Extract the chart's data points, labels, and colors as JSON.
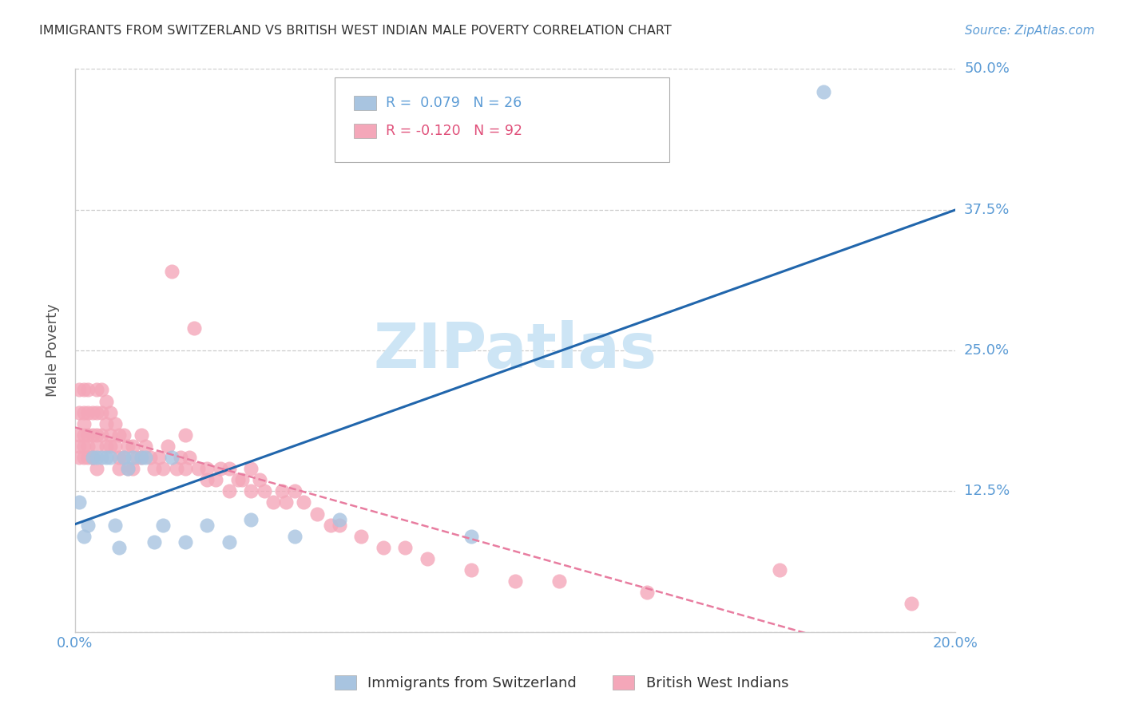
{
  "title": "IMMIGRANTS FROM SWITZERLAND VS BRITISH WEST INDIAN MALE POVERTY CORRELATION CHART",
  "source": "Source: ZipAtlas.com",
  "ylabel": "Male Poverty",
  "x_min": 0.0,
  "x_max": 0.2,
  "y_min": 0.0,
  "y_max": 0.5,
  "x_ticks": [
    0.0,
    0.05,
    0.1,
    0.15,
    0.2
  ],
  "x_tick_labels": [
    "0.0%",
    "",
    "",
    "",
    "20.0%"
  ],
  "y_ticks": [
    0.0,
    0.125,
    0.25,
    0.375,
    0.5
  ],
  "y_tick_labels": [
    "",
    "12.5%",
    "25.0%",
    "37.5%",
    "50.0%"
  ],
  "legend1_label": "Immigrants from Switzerland",
  "legend2_label": "British West Indians",
  "r1": 0.079,
  "n1": 26,
  "r2": -0.12,
  "n2": 92,
  "color_swiss": "#a8c4e0",
  "color_bwi": "#f4a7b9",
  "color_swiss_line": "#2166ac",
  "color_bwi_line": "#e87da0",
  "color_title": "#333333",
  "color_tick_labels": "#5b9bd5",
  "color_source": "#5b9bd5",
  "color_legend_r1": "#5b9bd5",
  "color_legend_r2": "#e0507a",
  "watermark_color": "#cde5f5",
  "swiss_x": [
    0.001,
    0.002,
    0.003,
    0.004,
    0.005,
    0.006,
    0.007,
    0.008,
    0.009,
    0.01,
    0.011,
    0.012,
    0.013,
    0.015,
    0.016,
    0.018,
    0.02,
    0.022,
    0.025,
    0.03,
    0.035,
    0.04,
    0.05,
    0.06,
    0.09,
    0.17
  ],
  "swiss_y": [
    0.115,
    0.085,
    0.095,
    0.155,
    0.155,
    0.155,
    0.155,
    0.155,
    0.095,
    0.075,
    0.155,
    0.145,
    0.155,
    0.155,
    0.155,
    0.08,
    0.095,
    0.155,
    0.08,
    0.095,
    0.08,
    0.1,
    0.085,
    0.1,
    0.085,
    0.48
  ],
  "bwi_x": [
    0.001,
    0.001,
    0.001,
    0.001,
    0.001,
    0.002,
    0.002,
    0.002,
    0.002,
    0.002,
    0.002,
    0.003,
    0.003,
    0.003,
    0.003,
    0.003,
    0.004,
    0.004,
    0.004,
    0.004,
    0.005,
    0.005,
    0.005,
    0.005,
    0.005,
    0.006,
    0.006,
    0.006,
    0.007,
    0.007,
    0.007,
    0.008,
    0.008,
    0.008,
    0.009,
    0.009,
    0.01,
    0.01,
    0.01,
    0.011,
    0.011,
    0.012,
    0.012,
    0.013,
    0.013,
    0.014,
    0.015,
    0.015,
    0.016,
    0.017,
    0.018,
    0.019,
    0.02,
    0.021,
    0.022,
    0.023,
    0.024,
    0.025,
    0.025,
    0.026,
    0.027,
    0.028,
    0.03,
    0.03,
    0.032,
    0.033,
    0.035,
    0.035,
    0.037,
    0.038,
    0.04,
    0.04,
    0.042,
    0.043,
    0.045,
    0.047,
    0.048,
    0.05,
    0.052,
    0.055,
    0.058,
    0.06,
    0.065,
    0.07,
    0.075,
    0.08,
    0.09,
    0.1,
    0.11,
    0.13,
    0.16,
    0.19
  ],
  "bwi_y": [
    0.155,
    0.175,
    0.195,
    0.215,
    0.165,
    0.155,
    0.185,
    0.165,
    0.195,
    0.215,
    0.175,
    0.155,
    0.175,
    0.195,
    0.215,
    0.165,
    0.155,
    0.175,
    0.195,
    0.155,
    0.215,
    0.195,
    0.175,
    0.165,
    0.145,
    0.215,
    0.195,
    0.175,
    0.185,
    0.165,
    0.205,
    0.195,
    0.175,
    0.165,
    0.185,
    0.165,
    0.175,
    0.155,
    0.145,
    0.175,
    0.155,
    0.165,
    0.145,
    0.165,
    0.145,
    0.155,
    0.155,
    0.175,
    0.165,
    0.155,
    0.145,
    0.155,
    0.145,
    0.165,
    0.32,
    0.145,
    0.155,
    0.145,
    0.175,
    0.155,
    0.27,
    0.145,
    0.135,
    0.145,
    0.135,
    0.145,
    0.125,
    0.145,
    0.135,
    0.135,
    0.125,
    0.145,
    0.135,
    0.125,
    0.115,
    0.125,
    0.115,
    0.125,
    0.115,
    0.105,
    0.095,
    0.095,
    0.085,
    0.075,
    0.075,
    0.065,
    0.055,
    0.045,
    0.045,
    0.035,
    0.055,
    0.025
  ]
}
